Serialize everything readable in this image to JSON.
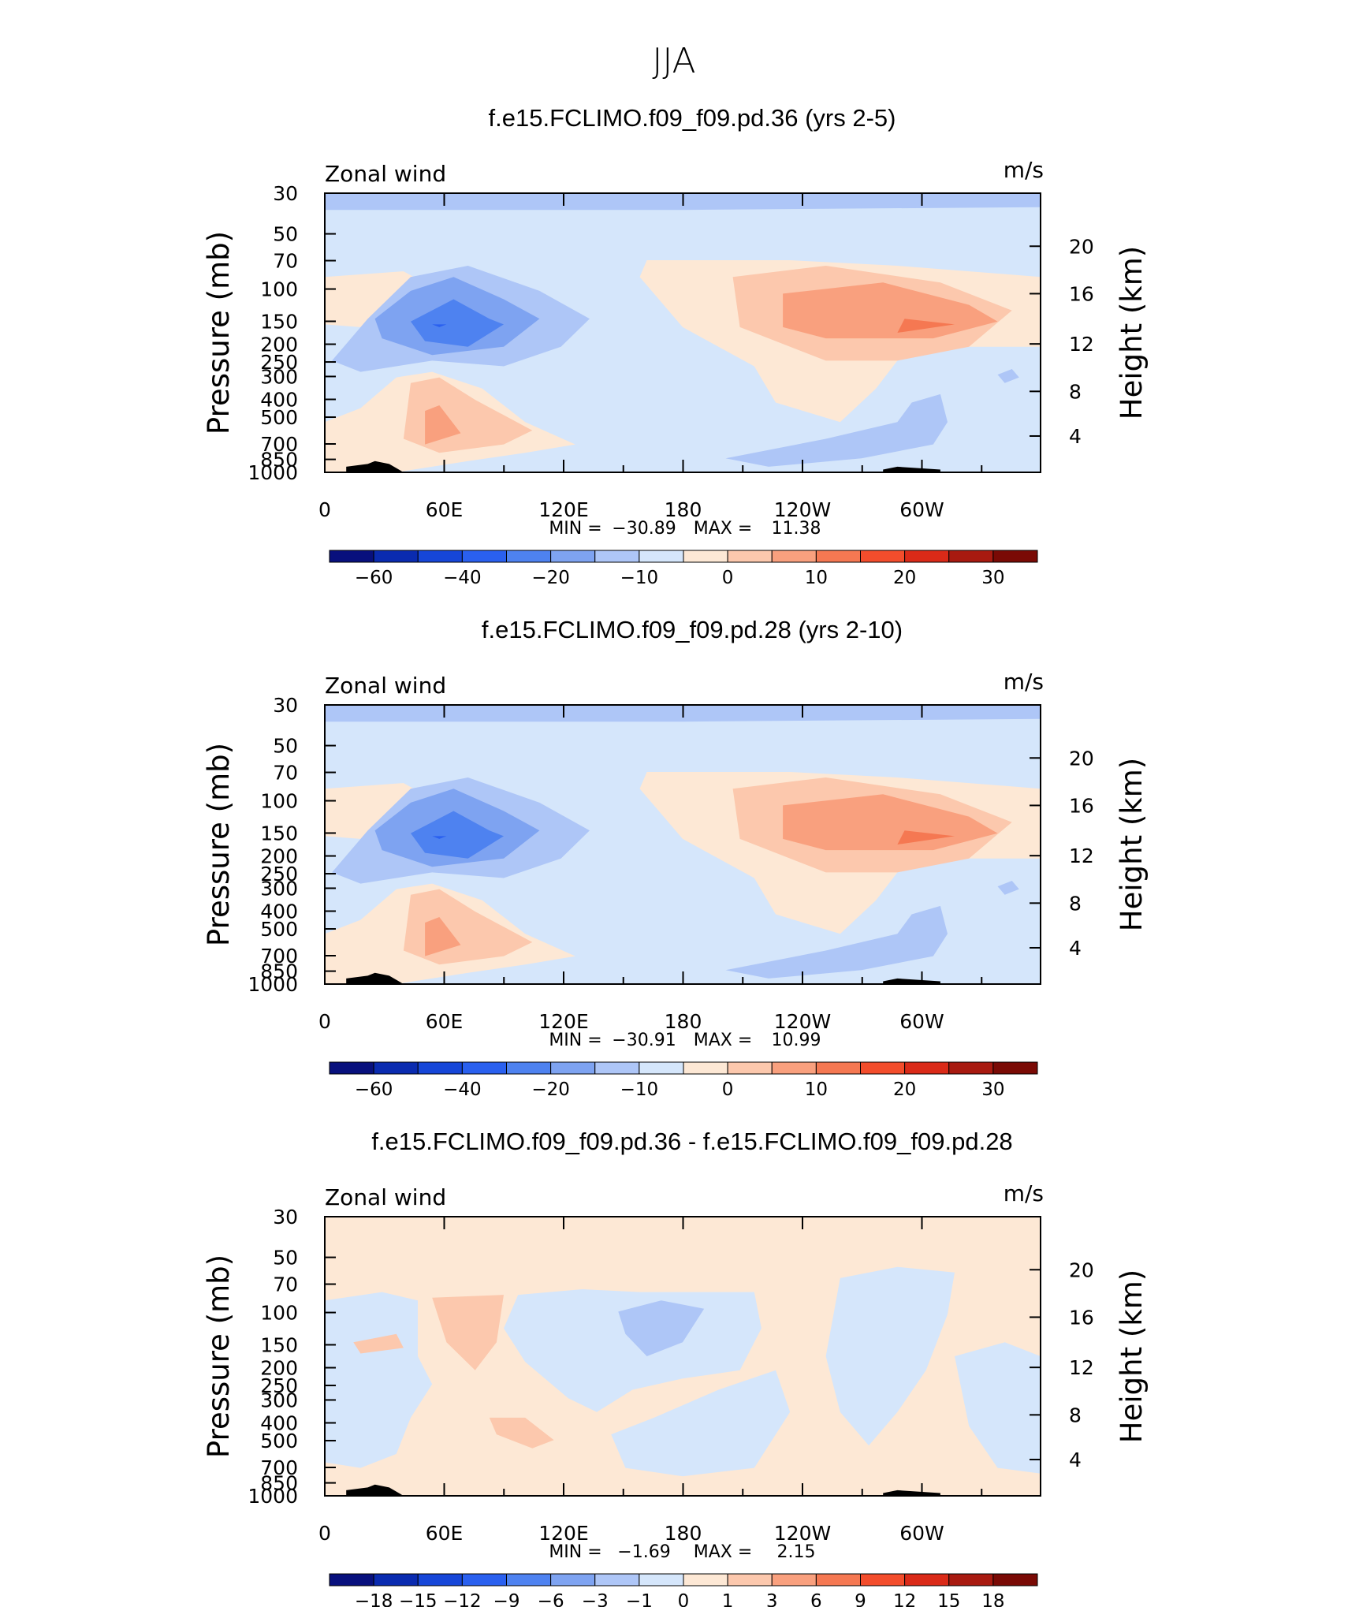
{
  "figure_title": "JJA",
  "chart_data": [
    {
      "type": "contour",
      "title": "f.e15.FCLIMO.f09_f09.pd.36 (yrs 2-5)",
      "left_label": "Zonal wind",
      "right_label": "m/s",
      "ylabel": "Pressure (mb)",
      "ylabel_right": "Height (km)",
      "yticks": [
        "30",
        "50",
        "70",
        "100",
        "150",
        "200",
        "250",
        "300",
        "400",
        "500",
        "700",
        "850",
        "1000"
      ],
      "yticks_right": [
        "20",
        "16",
        "12",
        "8",
        "4"
      ],
      "xticks": [
        "0",
        "60E",
        "120E",
        "180",
        "120W",
        "60W"
      ],
      "stats": {
        "min_label": "MIN =",
        "min": "−30.89",
        "max_label": "MAX =",
        "max": "11.38"
      },
      "colorbar_labels": [
        "−60",
        "−40",
        "−20",
        "−10",
        "0",
        "10",
        "20",
        "30"
      ],
      "variant": "base1"
    },
    {
      "type": "contour",
      "title": "f.e15.FCLIMO.f09_f09.pd.28 (yrs 2-10)",
      "left_label": "Zonal wind",
      "right_label": "m/s",
      "ylabel": "Pressure (mb)",
      "ylabel_right": "Height (km)",
      "yticks": [
        "30",
        "50",
        "70",
        "100",
        "150",
        "200",
        "250",
        "300",
        "400",
        "500",
        "700",
        "850",
        "1000"
      ],
      "yticks_right": [
        "20",
        "16",
        "12",
        "8",
        "4"
      ],
      "xticks": [
        "0",
        "60E",
        "120E",
        "180",
        "120W",
        "60W"
      ],
      "stats": {
        "min_label": "MIN =",
        "min": "−30.91",
        "max_label": "MAX =",
        "max": "10.99"
      },
      "colorbar_labels": [
        "−60",
        "−40",
        "−20",
        "−10",
        "0",
        "10",
        "20",
        "30"
      ],
      "variant": "base2"
    },
    {
      "type": "contour",
      "title": "f.e15.FCLIMO.f09_f09.pd.36 - f.e15.FCLIMO.f09_f09.pd.28",
      "left_label": "Zonal wind",
      "right_label": "m/s",
      "ylabel": "Pressure (mb)",
      "ylabel_right": "Height (km)",
      "yticks": [
        "30",
        "50",
        "70",
        "100",
        "150",
        "200",
        "250",
        "300",
        "400",
        "500",
        "700",
        "850",
        "1000"
      ],
      "yticks_right": [
        "20",
        "16",
        "12",
        "8",
        "4"
      ],
      "xticks": [
        "0",
        "60E",
        "120E",
        "180",
        "120W",
        "60W"
      ],
      "stats": {
        "min_label": "MIN =",
        "min": "−1.69",
        "max_label": "MAX =",
        "max": "2.15"
      },
      "colorbar_labels": [
        "−18",
        "−15",
        "−12",
        "−9",
        "−6",
        "−3",
        "−1",
        "0",
        "1",
        "3",
        "6",
        "9",
        "12",
        "15",
        "18"
      ],
      "variant": "diff"
    }
  ],
  "colors": {
    "colorbar": [
      "#08107d",
      "#0a2bb0",
      "#1646d8",
      "#2a60ef",
      "#4e82f0",
      "#7ea3f1",
      "#aec6f7",
      "#d5e6fb",
      "#fde8d5",
      "#fcc8ad",
      "#f9a07e",
      "#f57852",
      "#f34d2c",
      "#da2a18",
      "#a81a10",
      "#7a0a05"
    ]
  }
}
